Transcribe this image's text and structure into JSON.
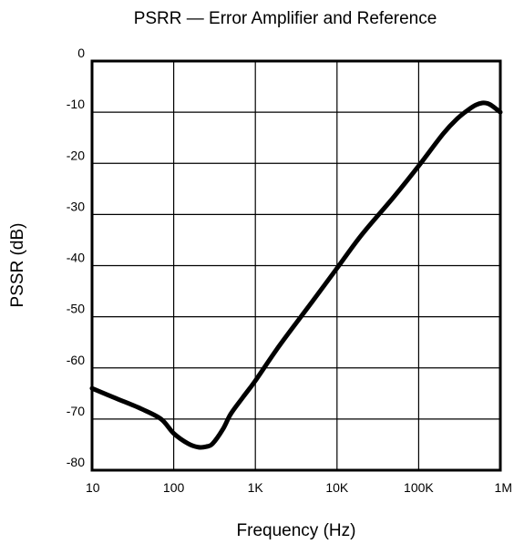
{
  "chart_data": {
    "type": "line",
    "title": "PSRR — Error Amplifier and Reference",
    "xlabel": "Frequency (Hz)",
    "ylabel": "PSSR (dB)",
    "x_scale": "log",
    "xlim": [
      10,
      1000000
    ],
    "ylim": [
      -80,
      0
    ],
    "grid": true,
    "legend": "none",
    "x_ticks": [
      {
        "value": 10,
        "label": "10"
      },
      {
        "value": 100,
        "label": "100"
      },
      {
        "value": 1000,
        "label": "1K"
      },
      {
        "value": 10000,
        "label": "10K"
      },
      {
        "value": 100000,
        "label": "100K"
      },
      {
        "value": 1000000,
        "label": "1M"
      }
    ],
    "y_ticks": [
      {
        "value": 0,
        "label": "0"
      },
      {
        "value": -10,
        "label": "-10"
      },
      {
        "value": -20,
        "label": "-20"
      },
      {
        "value": -30,
        "label": "-30"
      },
      {
        "value": -40,
        "label": "-40"
      },
      {
        "value": -50,
        "label": "-50"
      },
      {
        "value": -60,
        "label": "-60"
      },
      {
        "value": -70,
        "label": "-70"
      },
      {
        "value": -80,
        "label": "-80"
      }
    ],
    "series": [
      {
        "color": "#000000",
        "x": [
          10,
          20,
          40,
          70,
          100,
          150,
          200,
          250,
          300,
          400,
          500,
          700,
          1000,
          2000,
          5000,
          10000,
          20000,
          50000,
          100000,
          200000,
          300000,
          400000,
          500000,
          600000,
          700000,
          800000,
          1000000
        ],
        "y": [
          -64,
          -66,
          -68,
          -70,
          -72.8,
          -74.8,
          -75.5,
          -75.4,
          -74.8,
          -72,
          -69,
          -65.8,
          -62.5,
          -55.5,
          -47,
          -40.5,
          -34,
          -26.5,
          -20.5,
          -14.2,
          -11.2,
          -9.6,
          -8.6,
          -8.2,
          -8.3,
          -8.8,
          -10
        ]
      }
    ]
  }
}
